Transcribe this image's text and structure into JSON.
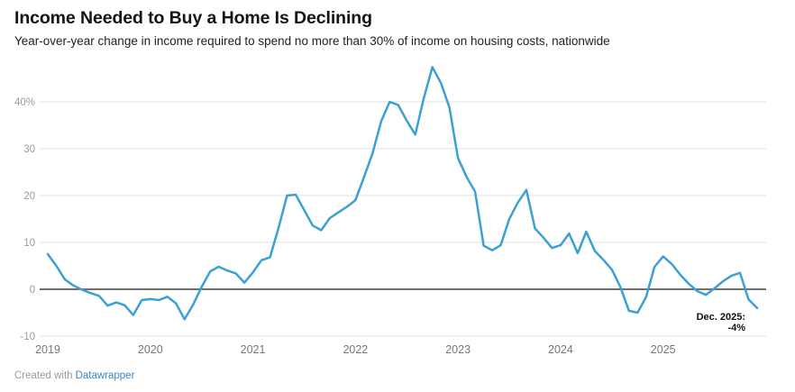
{
  "header": {
    "title": "Income Needed to Buy a Home Is Declining",
    "subtitle": "Year-over-year change in income required to spend no more than 30% of income on housing costs, nationwide"
  },
  "footer": {
    "created_with": "Created with",
    "link_label": "Datawrapper"
  },
  "colors": {
    "line": "#3da0d5",
    "zero_line": "#595959",
    "gridline": "#e7e7e7",
    "y_tick_label": "#9b9b9b",
    "x_tick_label": "#767676",
    "annotation_text": "#111111",
    "title_text": "#151515",
    "link_blue": "#3a87c8"
  },
  "chart_data": {
    "type": "line",
    "title": "Income Needed to Buy a Home Is Declining",
    "subtitle": "Year-over-year change in income required to spend no more than 30% of income on housing costs, nationwide",
    "x_unit": "month",
    "x_start": "2019-01",
    "x_end": "2025-12",
    "x_tick_labels": [
      "2019",
      "2020",
      "2021",
      "2022",
      "2023",
      "2024",
      "2025"
    ],
    "y_ticks": [
      {
        "value": 40,
        "label": "40%"
      },
      {
        "value": 30,
        "label": "30"
      },
      {
        "value": 20,
        "label": "20"
      },
      {
        "value": 10,
        "label": "10"
      },
      {
        "value": 0,
        "label": "0"
      },
      {
        "value": -10,
        "label": "-10"
      }
    ],
    "ylim": [
      -10,
      48
    ],
    "grid": "horizontal",
    "zero_line": true,
    "legend": "none",
    "series": [
      {
        "name": "YoY change in income required (%)",
        "color": "#3da0d5",
        "values": [
          7.5,
          5.0,
          2.1,
          0.8,
          -0.1,
          -0.8,
          -1.4,
          -3.5,
          -2.8,
          -3.4,
          -5.5,
          -2.3,
          -2.1,
          -2.3,
          -1.6,
          -3.0,
          -6.4,
          -3.3,
          0.5,
          3.8,
          4.8,
          4.0,
          3.4,
          1.4,
          3.6,
          6.2,
          6.8,
          13.1,
          20.0,
          20.2,
          16.9,
          13.6,
          12.6,
          15.2,
          16.4,
          17.6,
          19.0,
          23.9,
          29.0,
          35.8,
          40.0,
          39.3,
          36.0,
          33.0,
          40.8,
          47.4,
          44.0,
          38.8,
          28.0,
          24.0,
          20.8,
          9.3,
          8.3,
          9.4,
          15.0,
          18.5,
          21.2,
          13.0,
          11.0,
          8.8,
          9.4,
          11.9,
          7.7,
          12.3,
          8.2,
          6.3,
          4.2,
          0.5,
          -4.6,
          -5.0,
          -1.7,
          4.8,
          7.0,
          5.4,
          3.1,
          1.2,
          -0.4,
          -1.2,
          0.2,
          1.7,
          2.9,
          3.5,
          -2.2,
          -4.0
        ]
      }
    ],
    "annotation": {
      "line1": "Dec. 2025:",
      "line2": "-4%"
    }
  }
}
